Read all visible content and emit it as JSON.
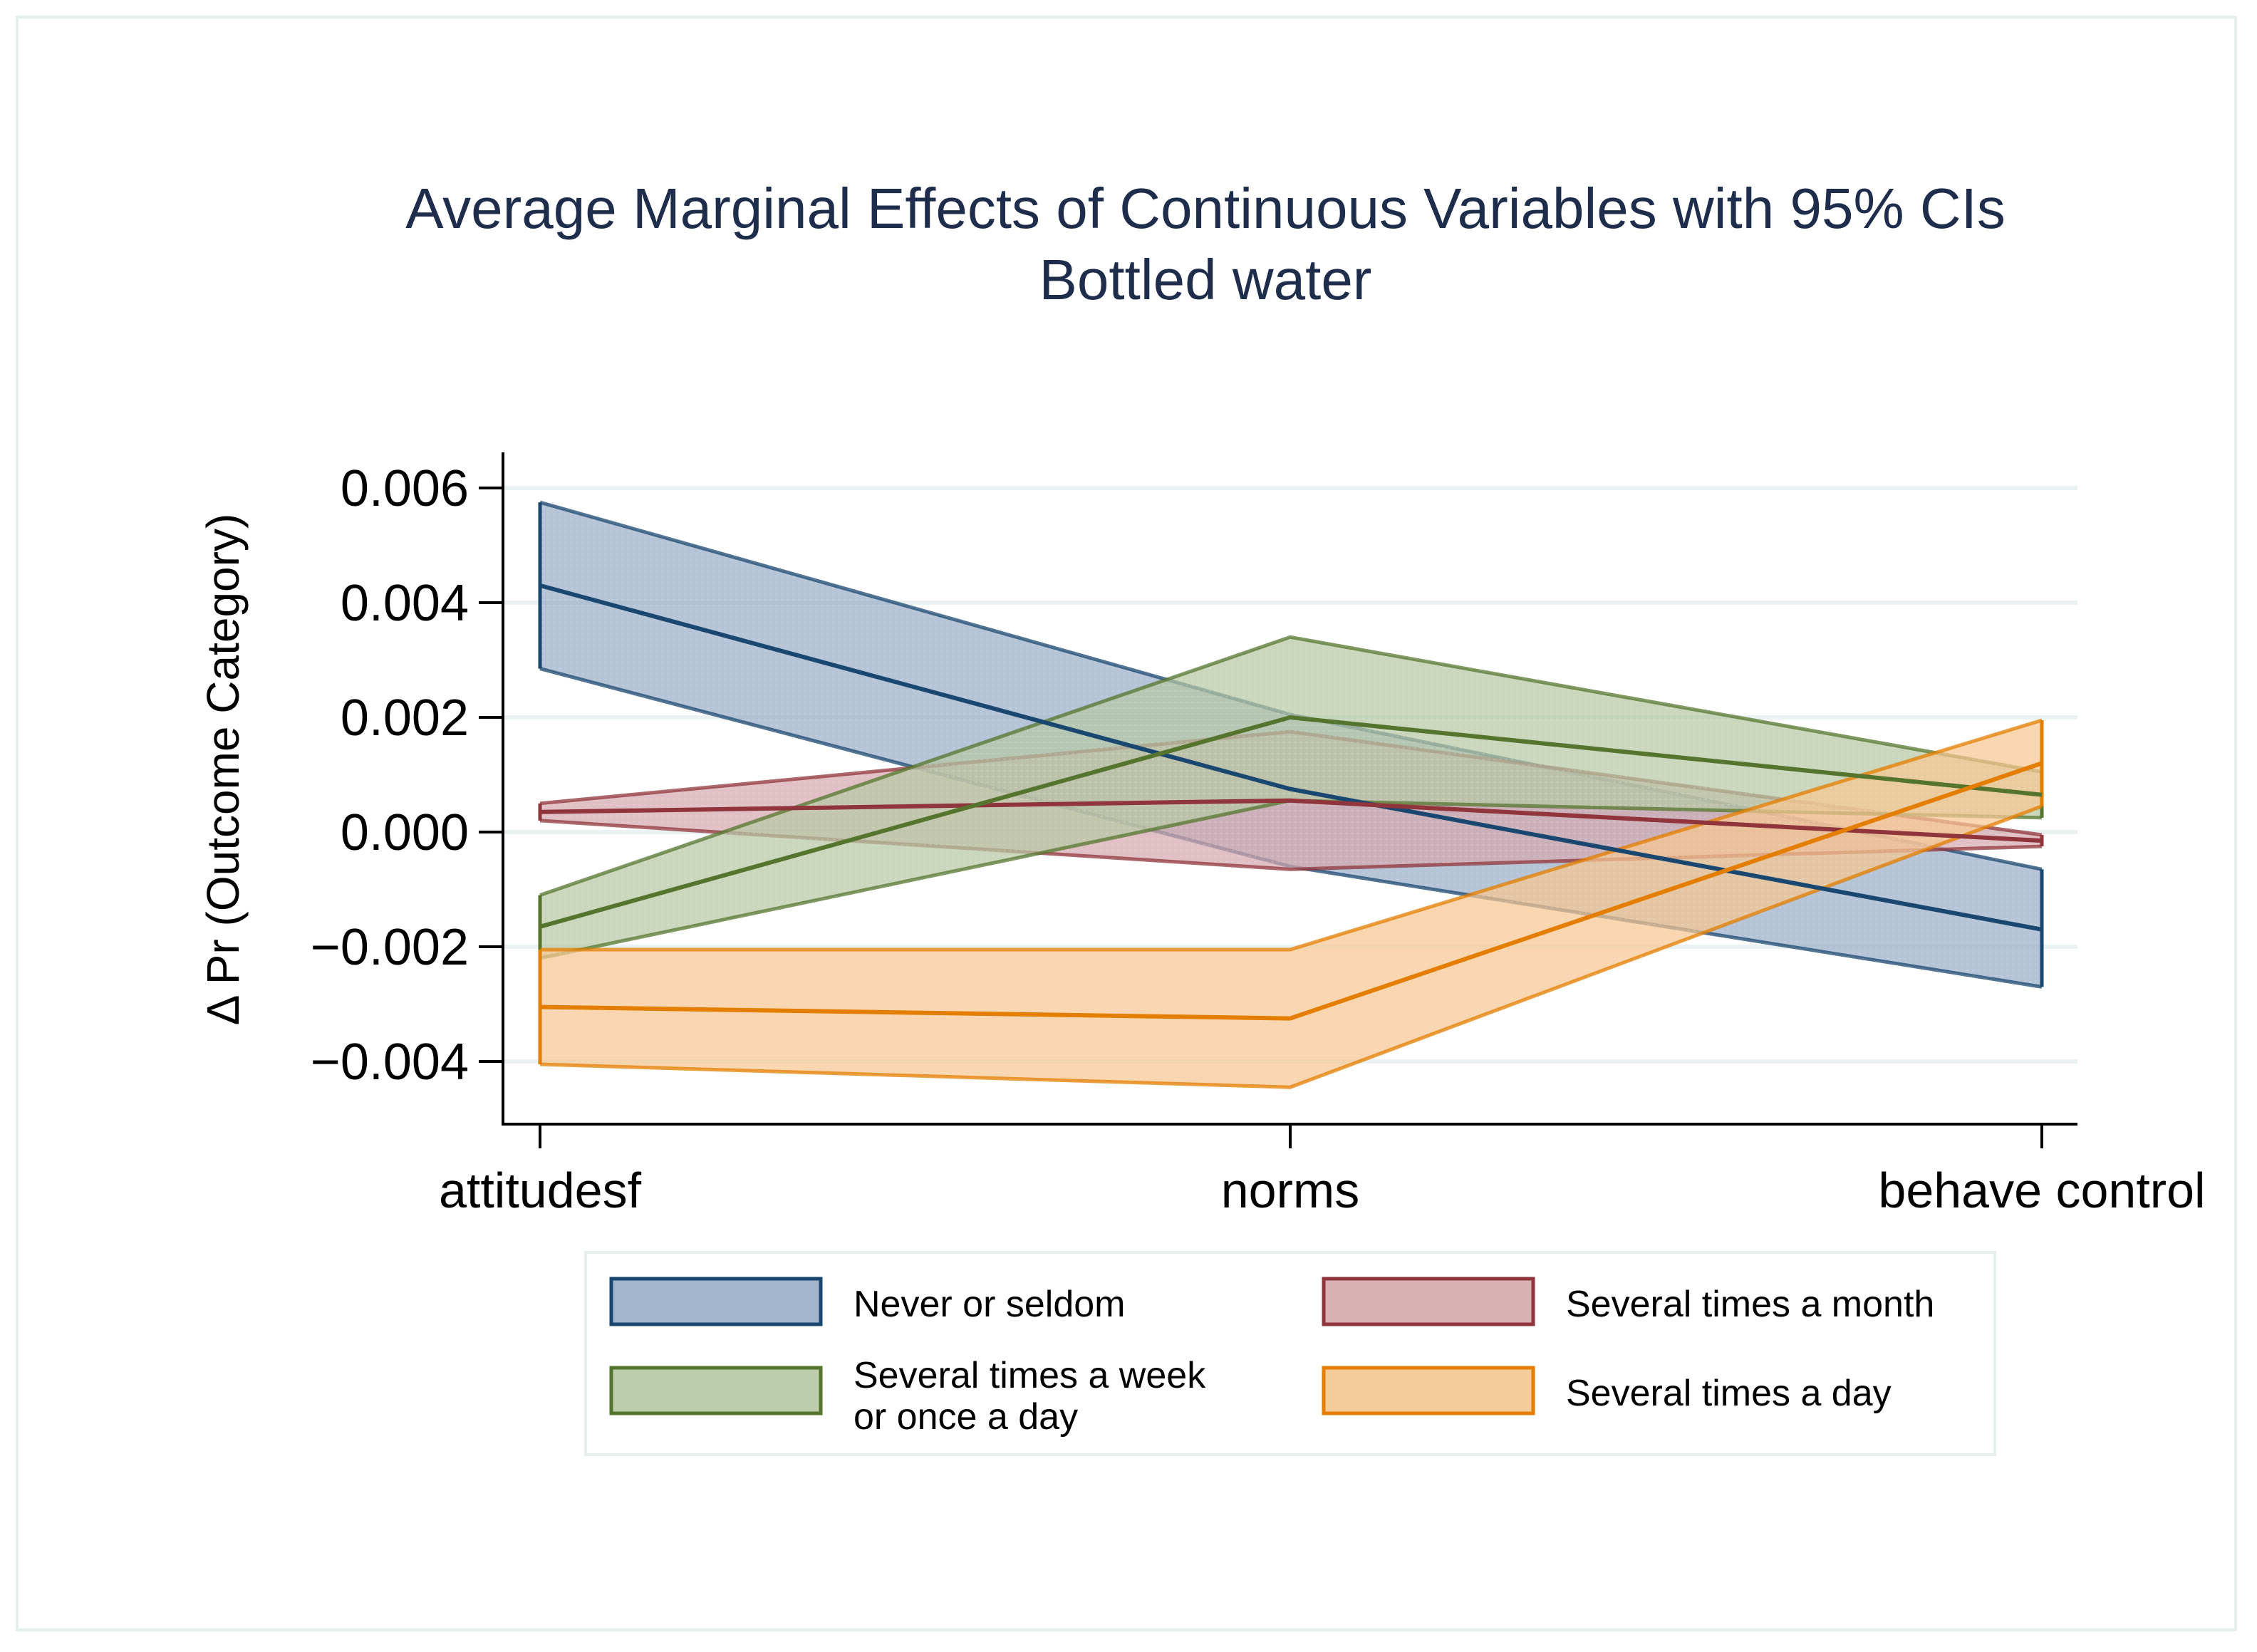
{
  "chart_data": {
    "type": "line",
    "title": "Average Marginal Effects of Continuous Variables with 95% CIs",
    "subtitle": "Bottled water",
    "xlabel": "",
    "ylabel": "Δ  Pr (Outcome Category)",
    "categories": [
      "attitudesf",
      "norms",
      "behave control"
    ],
    "ylim": [
      -0.0051,
      0.0066
    ],
    "yticks": [
      0.006,
      0.004,
      0.002,
      0.0,
      -0.002,
      -0.004
    ],
    "ytick_labels": [
      "0.006",
      "0.004",
      "0.002",
      "0.000",
      "−0.002",
      "−0.004"
    ],
    "grid": true,
    "legend_position": "bottom",
    "series": [
      {
        "name": "Never or seldom",
        "values": [
          0.0043,
          0.00075,
          -0.0017
        ],
        "ci_lower": [
          0.00285,
          -0.0006,
          -0.0027
        ],
        "ci_upper": [
          0.00575,
          0.00205,
          -0.00065
        ],
        "line_color": "#1a476f",
        "fill_color": "#98adc6"
      },
      {
        "name": "Several times a month",
        "values": [
          0.00035,
          0.00055,
          -0.00015
        ],
        "ci_lower": [
          0.0002,
          -0.00065,
          -0.00025
        ],
        "ci_upper": [
          0.0005,
          0.00175,
          -5e-05
        ],
        "line_color": "#90353b",
        "fill_color": "#d4a8ad"
      },
      {
        "name": "Several times a week or once a day",
        "values": [
          -0.00165,
          0.002,
          0.00065
        ],
        "ci_lower": [
          -0.0022,
          0.00055,
          0.00025
        ],
        "ci_upper": [
          -0.0011,
          0.0034,
          0.00105
        ],
        "line_color": "#55752f",
        "fill_color": "#b5c7a3"
      },
      {
        "name": "Several times a day",
        "values": [
          -0.00305,
          -0.00325,
          0.0012
        ],
        "ci_lower": [
          -0.00405,
          -0.00445,
          0.00045
        ],
        "ci_upper": [
          -0.00205,
          -0.00205,
          0.00195
        ],
        "line_color": "#e37e00",
        "fill_color": "#f6c690"
      }
    ]
  },
  "legend": {
    "items": [
      {
        "label": "Never or seldom"
      },
      {
        "label": "Several times a month"
      },
      {
        "label_line1": "Several times a week",
        "label_line2": "or once a day"
      },
      {
        "label": "Several times a day"
      }
    ]
  }
}
